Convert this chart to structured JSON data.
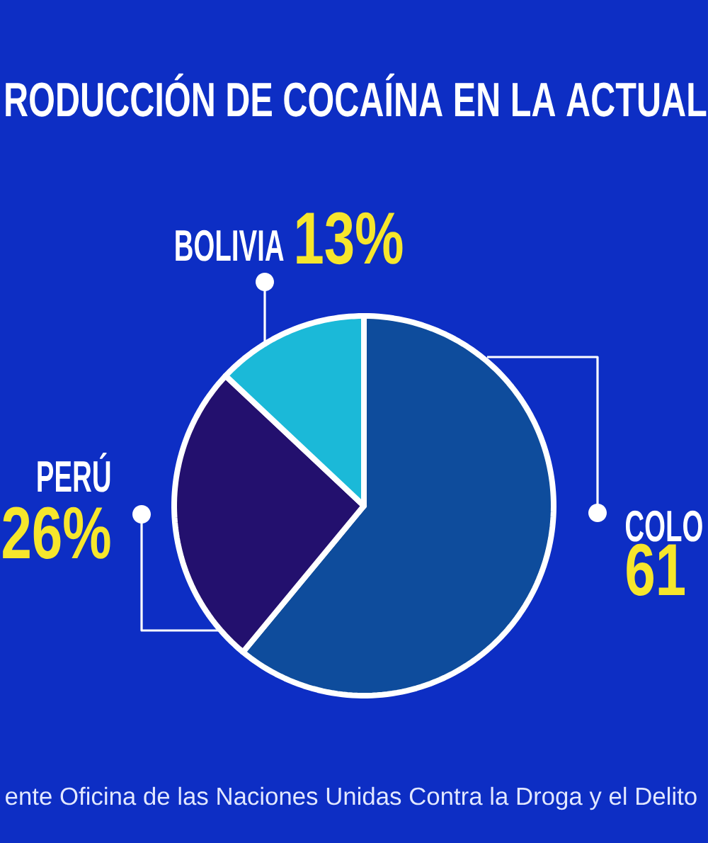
{
  "chart_data": {
    "type": "pie",
    "title": "RODUCCIÓN DE COCAÍNA EN LA ACTUAL",
    "categories": [
      "COLO",
      "PERÚ",
      "BOLIVIA"
    ],
    "values": [
      61,
      26,
      13
    ],
    "colors": [
      "#0e4c9c",
      "#23106e",
      "#1bb9d8"
    ],
    "value_labels": [
      "61",
      "26%",
      "13%"
    ],
    "annotations": [
      "ente Oficina de las Naciones Unidas Contra la Droga y el Delito"
    ]
  }
}
